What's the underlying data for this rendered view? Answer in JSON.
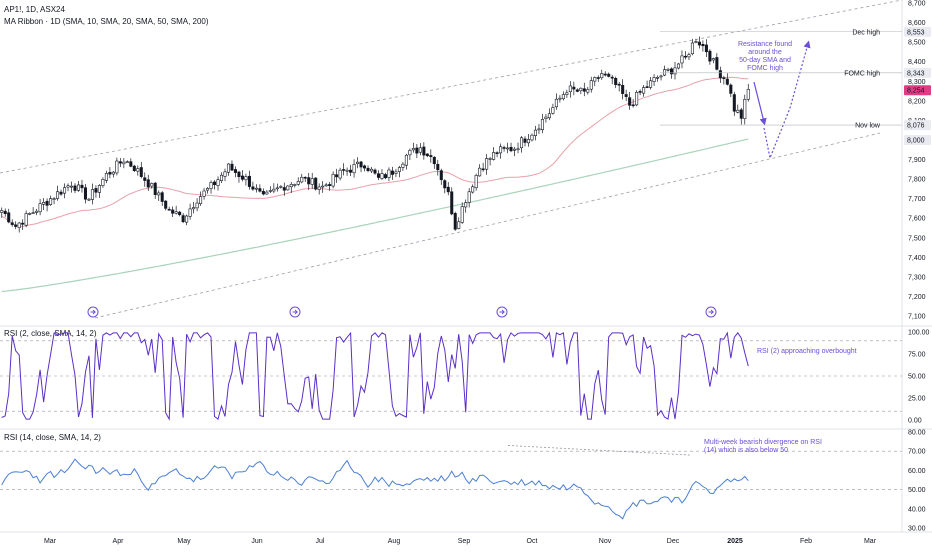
{
  "header": {
    "symbol_line": "AP1!, 1D, ASX24",
    "indicator_line": "MA Ribbon · 1D (SMA, 10, SMA, 20, SMA, 50, SMA, 200)"
  },
  "colors": {
    "candle": "#131722",
    "sma50": "#e8a0a8",
    "sma200": "#a8d4b8",
    "channel": "#9a9ea8",
    "rsi2": "#5b2fc9",
    "rsi14": "#4a7fd6",
    "annotation": "#6b4fd8",
    "last_price_bg": "#e03c86"
  },
  "price_axis": {
    "ticks": [
      "8,700",
      "8,600",
      "8,500",
      "8,400",
      "8,300",
      "8,200",
      "8,100",
      "8,000",
      "7,900",
      "7,800",
      "7,700",
      "7,600",
      "7,500",
      "7,400",
      "7,300",
      "7,200",
      "7,100"
    ],
    "markers": [
      {
        "label": "Dec high",
        "value": "8,553"
      },
      {
        "label": "FOMC high",
        "value": "8,343"
      },
      {
        "label": "",
        "value": "8,254",
        "highlight": true
      },
      {
        "label": "Nov low",
        "value": "8,076"
      },
      {
        "label": "",
        "value": "8,000"
      }
    ]
  },
  "annotations": {
    "resistance": [
      "Resistance found",
      "around the",
      "50-day SMA and",
      "FOMC high"
    ],
    "rsi2_note": "RSI (2) approaching overbought",
    "rsi14_note": [
      "Multi-week bearish divergence on RSI",
      "(14) which is also below 50"
    ]
  },
  "rsi2_panel": {
    "title": "RSI (2, close, SMA, 14, 2)",
    "ticks": [
      "100.00",
      "75.00",
      "50.00",
      "25.00",
      "0.00"
    ]
  },
  "rsi14_panel": {
    "title": "RSI (14, close, SMA, 14, 2)",
    "ticks": [
      "80.00",
      "70.00",
      "60.00",
      "50.00",
      "40.00",
      "30.00"
    ]
  },
  "x_axis": {
    "labels": [
      "Mar",
      "Apr",
      "May",
      "Jun",
      "Jul",
      "Aug",
      "Sep",
      "Oct",
      "Nov",
      "Dec",
      "2025",
      "Feb",
      "Mar"
    ]
  },
  "chart_data": {
    "type": "line",
    "x_axis_labels": [
      "Mar",
      "Apr",
      "May",
      "Jun",
      "Jul",
      "Aug",
      "Sep",
      "Oct",
      "Nov",
      "Dec",
      "2025",
      "Feb",
      "Mar"
    ],
    "price": {
      "ylim": [
        7100,
        8700
      ],
      "series": [
        {
          "name": "AP1!",
          "x": [
            "Mar",
            "Apr",
            "May",
            "Jun",
            "Jul",
            "Aug",
            "Sep",
            "Oct",
            "Nov",
            "Dec",
            "2025"
          ],
          "values": [
            7620,
            7860,
            7600,
            7790,
            7860,
            7520,
            7960,
            8250,
            8150,
            8520,
            8254
          ]
        }
      ]
    },
    "rsi2": {
      "ylim": [
        0,
        100
      ],
      "levels": [
        90,
        50,
        10
      ]
    },
    "rsi14": {
      "ylim": [
        30,
        80
      ],
      "levels": [
        70,
        50
      ]
    }
  }
}
